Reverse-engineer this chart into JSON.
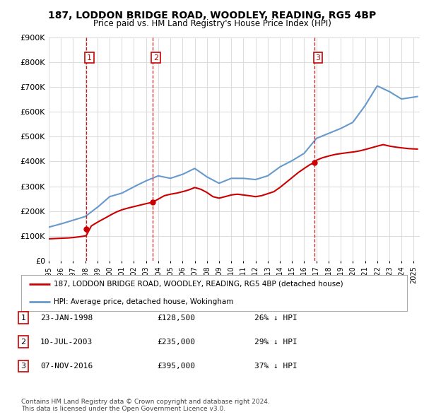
{
  "title": "187, LODDON BRIDGE ROAD, WOODLEY, READING, RG5 4BP",
  "subtitle": "Price paid vs. HM Land Registry's House Price Index (HPI)",
  "ylim": [
    0,
    900000
  ],
  "yticks": [
    0,
    100000,
    200000,
    300000,
    400000,
    500000,
    600000,
    700000,
    800000,
    900000
  ],
  "ytick_labels": [
    "£0",
    "£100K",
    "£200K",
    "£300K",
    "£400K",
    "£500K",
    "£600K",
    "£700K",
    "£800K",
    "£900K"
  ],
  "xlim_start": 1995.0,
  "xlim_end": 2025.5,
  "sale_color": "#cc0000",
  "hpi_color": "#6699cc",
  "background_color": "#ffffff",
  "grid_color": "#dddddd",
  "transactions": [
    {
      "date": 1998.07,
      "price": 128500,
      "label": "1"
    },
    {
      "date": 2003.52,
      "price": 235000,
      "label": "2"
    },
    {
      "date": 2016.85,
      "price": 395000,
      "label": "3"
    }
  ],
  "legend_entries": [
    "187, LODDON BRIDGE ROAD, WOODLEY, READING, RG5 4BP (detached house)",
    "HPI: Average price, detached house, Wokingham"
  ],
  "table_rows": [
    {
      "num": "1",
      "date": "23-JAN-1998",
      "price": "£128,500",
      "change": "26% ↓ HPI"
    },
    {
      "num": "2",
      "date": "10-JUL-2003",
      "price": "£235,000",
      "change": "29% ↓ HPI"
    },
    {
      "num": "3",
      "date": "07-NOV-2016",
      "price": "£395,000",
      "change": "37% ↓ HPI"
    }
  ],
  "footnote": "Contains HM Land Registry data © Crown copyright and database right 2024.\nThis data is licensed under the Open Government Licence v3.0.",
  "xtick_years": [
    1995,
    1996,
    1997,
    1998,
    1999,
    2000,
    2001,
    2002,
    2003,
    2004,
    2005,
    2006,
    2007,
    2008,
    2009,
    2010,
    2011,
    2012,
    2013,
    2014,
    2015,
    2016,
    2017,
    2018,
    2019,
    2020,
    2021,
    2022,
    2023,
    2024,
    2025
  ],
  "hpi_years": [
    1995,
    1996,
    1997,
    1998,
    1999,
    2000,
    2001,
    2002,
    2003,
    2004,
    2005,
    2006,
    2007,
    2008,
    2009,
    2010,
    2011,
    2012,
    2013,
    2014,
    2015,
    2016,
    2017,
    2018,
    2019,
    2020,
    2021,
    2022,
    2023,
    2024,
    2025.3
  ],
  "hpi_prices": [
    135000,
    148000,
    163000,
    178000,
    215000,
    258000,
    272000,
    298000,
    322000,
    342000,
    332000,
    348000,
    372000,
    338000,
    312000,
    332000,
    332000,
    327000,
    342000,
    378000,
    403000,
    433000,
    493000,
    513000,
    533000,
    558000,
    625000,
    705000,
    682000,
    652000,
    662000
  ],
  "sale_seg1_t": [
    1995.0,
    1995.5,
    1996.0,
    1996.5,
    1997.0,
    1997.5,
    1998.07
  ],
  "sale_seg1_p": [
    88000,
    89000,
    90000,
    91000,
    93000,
    96000,
    100000
  ],
  "sale_seg2_t": [
    1998.07,
    1998.5,
    1999.0,
    1999.5,
    2000.0,
    2000.5,
    2001.0,
    2001.5,
    2002.0,
    2002.5,
    2003.0,
    2003.52
  ],
  "sale_seg2_p": [
    128500,
    140000,
    155000,
    168000,
    182000,
    195000,
    205000,
    212000,
    218000,
    224000,
    230000,
    235000
  ],
  "sale_seg3_t": [
    2003.52,
    2004.0,
    2004.5,
    2005.0,
    2005.5,
    2006.0,
    2006.5,
    2007.0,
    2007.5,
    2008.0,
    2008.5,
    2009.0,
    2009.5,
    2010.0,
    2010.5,
    2011.0,
    2011.5,
    2012.0,
    2012.5,
    2013.0,
    2013.5,
    2014.0,
    2014.5,
    2015.0,
    2015.5,
    2016.0,
    2016.5,
    2016.85
  ],
  "sale_seg3_p": [
    235000,
    248000,
    262000,
    268000,
    272000,
    278000,
    285000,
    295000,
    288000,
    275000,
    258000,
    252000,
    258000,
    265000,
    268000,
    265000,
    262000,
    258000,
    262000,
    270000,
    278000,
    295000,
    315000,
    335000,
    355000,
    372000,
    388000,
    395000
  ],
  "sale_seg4_t": [
    2016.85,
    2017.0,
    2017.5,
    2018.0,
    2018.5,
    2019.0,
    2019.5,
    2020.0,
    2020.5,
    2021.0,
    2021.5,
    2022.0,
    2022.5,
    2023.0,
    2023.5,
    2024.0,
    2024.5,
    2025.3
  ],
  "sale_seg4_p": [
    395000,
    405000,
    415000,
    422000,
    428000,
    432000,
    435000,
    438000,
    442000,
    448000,
    455000,
    462000,
    468000,
    462000,
    458000,
    455000,
    452000,
    450000
  ]
}
